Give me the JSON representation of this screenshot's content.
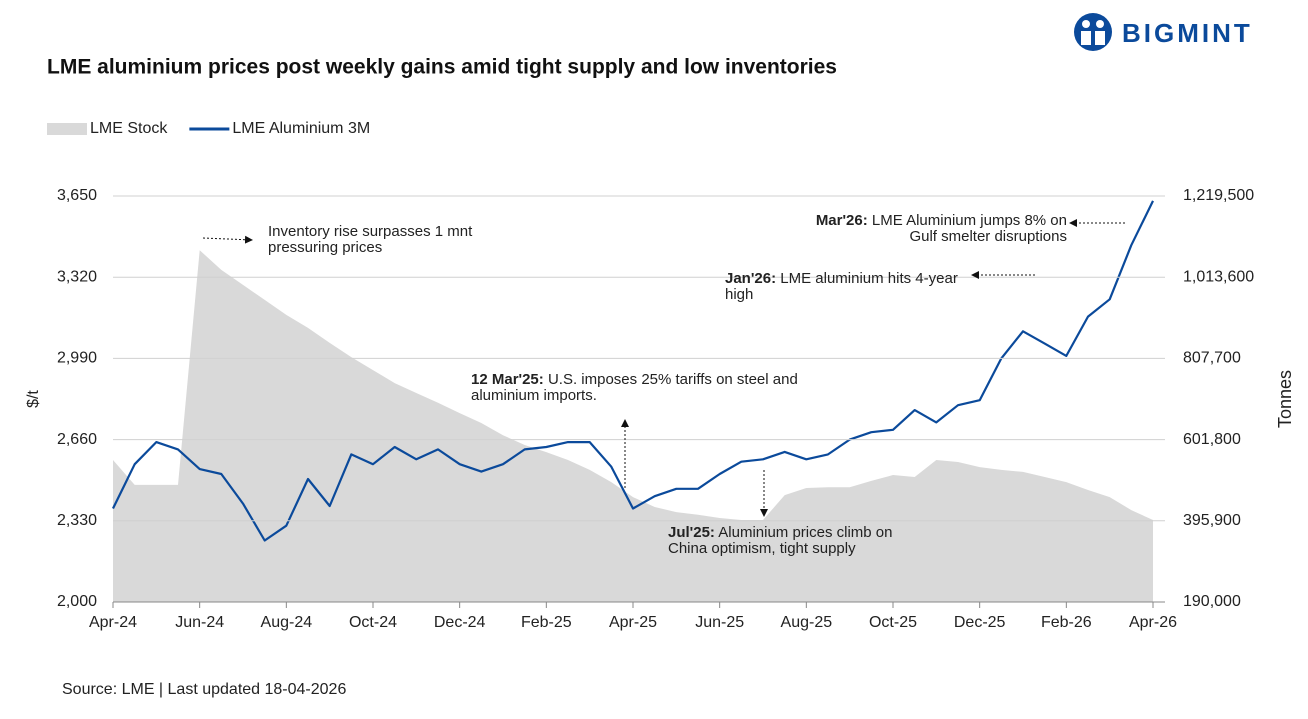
{
  "logo": "BIGMINT",
  "chart_data": {
    "type": "line",
    "title": "LME aluminium prices post weekly gains amid tight supply and low inventories",
    "source": "Source: LME | Last updated 18-04-2026",
    "ylabel": "$/t",
    "y2label": "Tonnes",
    "legend": "top-left",
    "grid": true,
    "x": [
      "Apr-24",
      null,
      null,
      null,
      "Jun-24",
      null,
      null,
      null,
      "Aug-24",
      null,
      null,
      null,
      "Oct-24",
      null,
      null,
      null,
      "Dec-24",
      null,
      null,
      null,
      "Feb-25",
      null,
      null,
      null,
      "Apr-25",
      null,
      null,
      null,
      "Jun-25",
      null,
      null,
      null,
      "Aug-25",
      null,
      null,
      null,
      "Oct-25",
      null,
      null,
      null,
      "Dec-25",
      null,
      null,
      null,
      "Feb-26",
      null,
      null,
      null,
      "Apr-26"
    ],
    "ylim": [
      2000,
      3650
    ],
    "yticks": [
      {
        "value": 2000,
        "label": "2,000"
      },
      {
        "value": 2330,
        "label": "2,330"
      },
      {
        "value": 2660,
        "label": "2,660"
      },
      {
        "value": 2990,
        "label": "2,990"
      },
      {
        "value": 3320,
        "label": "3,320"
      },
      {
        "value": 3650,
        "label": "3,650"
      }
    ],
    "y2lim": [
      190000,
      1219500
    ],
    "y2ticks": [
      {
        "value": 190000,
        "label": "190,000"
      },
      {
        "value": 395900,
        "label": "395,900"
      },
      {
        "value": 601800,
        "label": "601,800"
      },
      {
        "value": 807700,
        "label": "807,700"
      },
      {
        "value": 1013600,
        "label": "1,013,600"
      },
      {
        "value": 1219500,
        "label": "1,219,500"
      }
    ],
    "series": [
      {
        "name": "LME Stock",
        "type": "area",
        "axis": "y2",
        "color": "#d9d9d9",
        "values": [
          550000,
          487000,
          487000,
          487000,
          1082000,
          1032000,
          994000,
          956000,
          918000,
          885000,
          847000,
          811000,
          778000,
          745000,
          720000,
          695000,
          669000,
          644000,
          613000,
          588000,
          570000,
          550000,
          525000,
          494000,
          456000,
          431000,
          418000,
          411000,
          403000,
          398000,
          398000,
          461000,
          479000,
          481000,
          481000,
          497000,
          512000,
          507000,
          550000,
          545000,
          532000,
          525000,
          520000,
          507000,
          494000,
          474000,
          456000,
          423000,
          398000
        ]
      },
      {
        "name": "LME Aluminium 3M",
        "type": "line",
        "color": "#0b4a9b",
        "values": [
          2380,
          2560,
          2650,
          2620,
          2540,
          2520,
          2400,
          2250,
          2310,
          2500,
          2390,
          2600,
          2560,
          2630,
          2580,
          2620,
          2560,
          2530,
          2560,
          2620,
          2630,
          2650,
          2650,
          2550,
          2380,
          2430,
          2460,
          2460,
          2520,
          2570,
          2580,
          2610,
          2580,
          2600,
          2660,
          2690,
          2700,
          2780,
          2730,
          2800,
          2820,
          2990,
          3100,
          3050,
          3000,
          3160,
          3230,
          3450,
          3630
        ]
      }
    ],
    "annotations": [
      {
        "text": "Inventory rise surpasses 1 mnt pressuring prices"
      },
      {
        "bold": "12 Mar'25:",
        "text": "U.S. imposes 25% tariffs on steel and aluminium imports."
      },
      {
        "bold": "Jul'25:",
        "text": "Aluminium prices climb on China optimism, tight supply"
      },
      {
        "bold": "Jan'26:",
        "text": "LME aluminium hits 4-year high"
      },
      {
        "bold": "Mar'26:",
        "text": "LME Aluminium jumps 8% on Gulf smelter disruptions"
      }
    ]
  }
}
